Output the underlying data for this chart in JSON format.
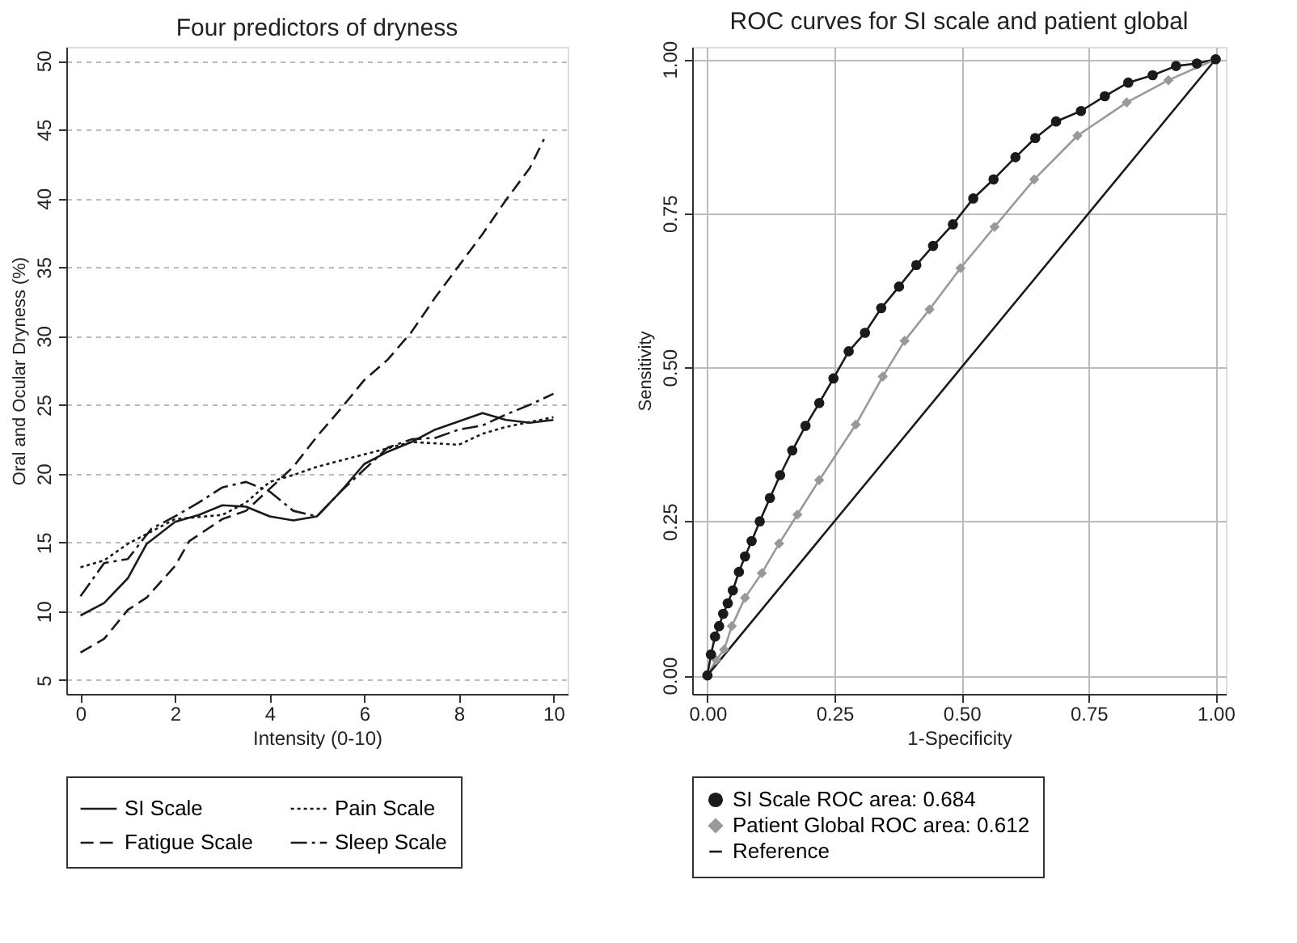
{
  "chart_data": [
    {
      "type": "line",
      "title": "Four predictors of dryness",
      "xlabel": "Intensity (0-10)",
      "ylabel": "Oral and Ocular Dryness (%)",
      "xlim": [
        -0.3,
        10.3
      ],
      "ylim": [
        4,
        51
      ],
      "xticks": [
        0,
        2,
        4,
        6,
        8,
        10
      ],
      "yticks": [
        5,
        10,
        15,
        20,
        25,
        30,
        35,
        40,
        45,
        50
      ],
      "grid": "y",
      "legend": "bottom",
      "marker": "none",
      "series": [
        {
          "name": "SI Scale",
          "color": "#1a1a1a",
          "line_style": "solid",
          "x": [
            0,
            0.5,
            1,
            1.4,
            2,
            2.5,
            3,
            3.5,
            4,
            4.5,
            5,
            5.5,
            6,
            6.5,
            7,
            7.5,
            8.5,
            9,
            9.5,
            10
          ],
          "values": [
            9.7,
            10.6,
            12.4,
            14.9,
            16.5,
            17.0,
            17.7,
            17.6,
            16.9,
            16.6,
            16.9,
            18.7,
            20.7,
            21.6,
            22.3,
            23.2,
            24.4,
            23.9,
            23.7,
            23.9
          ]
        },
        {
          "name": "Fatigue Scale",
          "color": "#1a1a1a",
          "line_style": "dashed",
          "x": [
            0,
            0.5,
            1,
            1.4,
            2,
            2.3,
            3,
            3.5,
            4,
            4.5,
            5,
            5.5,
            6,
            6.5,
            7,
            7.5,
            8,
            8.5,
            9,
            9.5,
            9.8
          ],
          "values": [
            7.0,
            8.0,
            10.1,
            11.0,
            13.3,
            15.1,
            16.7,
            17.3,
            18.9,
            20.5,
            22.7,
            24.7,
            26.8,
            28.3,
            30.3,
            32.8,
            35.1,
            37.4,
            39.9,
            42.2,
            44.3
          ]
        },
        {
          "name": "Pain Scale",
          "color": "#1a1a1a",
          "line_style": "dotted",
          "x": [
            0,
            0.5,
            1,
            2,
            3,
            3.5,
            4,
            4.5,
            5,
            6,
            7,
            8,
            8.5,
            9,
            10
          ],
          "values": [
            13.2,
            13.7,
            14.9,
            16.7,
            17.0,
            17.9,
            19.4,
            19.9,
            20.5,
            21.4,
            22.3,
            22.1,
            22.9,
            23.4,
            24.1
          ]
        },
        {
          "name": "Sleep Scale",
          "color": "#1a1a1a",
          "line_style": "dashdot",
          "x": [
            0,
            0.5,
            1,
            1.5,
            2,
            2.5,
            3,
            3.5,
            4,
            4.5,
            5,
            5.5,
            6,
            6.5,
            7,
            7.5,
            8,
            8.5,
            9,
            9.5,
            10
          ],
          "values": [
            11.1,
            13.5,
            13.8,
            16.0,
            16.9,
            17.9,
            19.0,
            19.4,
            18.7,
            17.3,
            16.9,
            18.7,
            20.3,
            21.9,
            22.5,
            22.6,
            23.2,
            23.5,
            24.3,
            25.0,
            25.8
          ]
        }
      ]
    },
    {
      "type": "line",
      "title": "ROC curves for SI scale and patient global",
      "xlabel": "1-Specificity",
      "ylabel": "Sensitivity",
      "xlim": [
        -0.03,
        1.02
      ],
      "ylim": [
        -0.03,
        1.02
      ],
      "xticks": [
        {
          "value": 0,
          "label": "0.00"
        },
        {
          "value": 0.25,
          "label": "0.25"
        },
        {
          "value": 0.5,
          "label": "0.50"
        },
        {
          "value": 0.75,
          "label": "0.75"
        },
        {
          "value": 1,
          "label": "1.00"
        }
      ],
      "yticks": [
        {
          "value": 0,
          "label": "0.00"
        },
        {
          "value": 0.25,
          "label": "0.25"
        },
        {
          "value": 0.5,
          "label": "0.50"
        },
        {
          "value": 0.75,
          "label": "0.75"
        },
        {
          "value": 1,
          "label": "1.00"
        }
      ],
      "grid": true,
      "legend": "bottom",
      "series": [
        {
          "name": "SI Scale ROC area: 0.684",
          "color": "#1a1a1a",
          "marker": "circle",
          "x": [
            0,
            0.007,
            0.015,
            0.023,
            0.031,
            0.04,
            0.05,
            0.062,
            0.074,
            0.087,
            0.103,
            0.123,
            0.143,
            0.167,
            0.193,
            0.22,
            0.248,
            0.278,
            0.31,
            0.342,
            0.377,
            0.411,
            0.444,
            0.483,
            0.523,
            0.563,
            0.606,
            0.645,
            0.686,
            0.735,
            0.782,
            0.828,
            0.876,
            0.922,
            0.963,
            1
          ],
          "values": [
            0,
            0.034,
            0.063,
            0.08,
            0.1,
            0.117,
            0.138,
            0.168,
            0.193,
            0.218,
            0.25,
            0.288,
            0.325,
            0.365,
            0.405,
            0.442,
            0.482,
            0.526,
            0.556,
            0.596,
            0.631,
            0.666,
            0.697,
            0.732,
            0.774,
            0.805,
            0.841,
            0.872,
            0.899,
            0.916,
            0.94,
            0.962,
            0.974,
            0.989,
            0.993,
            1
          ]
        },
        {
          "name": "Patient Global ROC area: 0.612",
          "color": "#999999",
          "marker": "diamond",
          "x": [
            0,
            0.017,
            0.033,
            0.048,
            0.074,
            0.107,
            0.141,
            0.177,
            0.22,
            0.292,
            0.345,
            0.388,
            0.437,
            0.498,
            0.565,
            0.643,
            0.728,
            0.825,
            0.907,
            1
          ],
          "values": [
            0,
            0.025,
            0.042,
            0.08,
            0.126,
            0.166,
            0.214,
            0.261,
            0.317,
            0.407,
            0.485,
            0.543,
            0.594,
            0.661,
            0.728,
            0.805,
            0.876,
            0.93,
            0.966,
            1
          ]
        },
        {
          "name": "Reference",
          "color": "#1a1a1a",
          "marker": "none",
          "x": [
            0,
            1
          ],
          "values": [
            0,
            1
          ]
        }
      ]
    }
  ]
}
